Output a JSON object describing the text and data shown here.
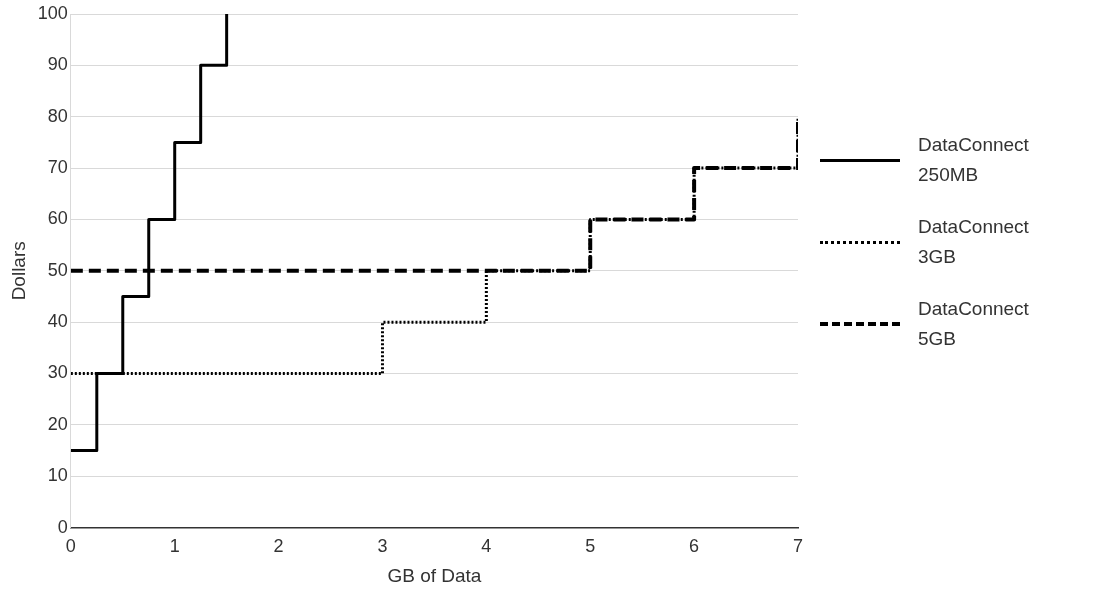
{
  "chart_data": {
    "type": "step",
    "xlabel": "GB of Data",
    "ylabel": "Dollars",
    "xlim": [
      0,
      7
    ],
    "xticks": [
      0,
      1,
      2,
      3,
      4,
      5,
      6,
      7
    ],
    "ylim": [
      0,
      100
    ],
    "yticks": [
      0,
      10,
      20,
      30,
      40,
      50,
      60,
      70,
      80,
      90,
      100
    ],
    "grid": "y",
    "legend": "right",
    "marker": "none",
    "series": [
      {
        "name": "DataConnect 250MB",
        "color": "#000000",
        "line_style": "solid",
        "x": [
          0,
          0.25,
          0.5,
          0.75,
          1,
          1.25,
          1.5
        ],
        "values": [
          15,
          30,
          45,
          60,
          75,
          90,
          100
        ]
      },
      {
        "name": "DataConnect 3GB",
        "color": "#000000",
        "line_style": "dotted",
        "x": [
          0,
          3,
          4,
          5,
          6,
          7
        ],
        "values": [
          30,
          40,
          50,
          60,
          70,
          80
        ]
      },
      {
        "name": "DataConnect 5GB",
        "color": "#000000",
        "line_style": "dashed",
        "x": [
          0,
          5,
          6,
          7
        ],
        "values": [
          50,
          60,
          70,
          80
        ]
      }
    ]
  }
}
